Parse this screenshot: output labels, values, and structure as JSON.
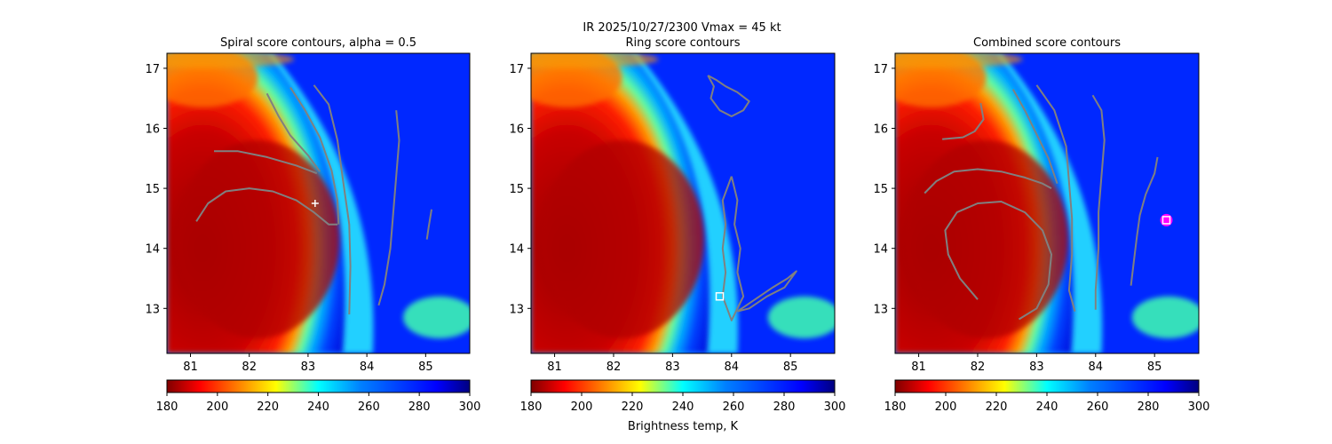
{
  "figure": {
    "suptitle_line1": "IR  2025/10/27/2300    Vmax = 45 kt"
  },
  "chart_data": [
    {
      "type": "heatmap",
      "panel_id": "spiral",
      "title": "Spiral score contours, alpha =  0.5",
      "xlabel": "",
      "ylabel": "",
      "xlim": [
        80.6,
        85.75
      ],
      "ylim": [
        12.25,
        17.25
      ],
      "xticks": [
        "81",
        "82",
        "83",
        "84",
        "85"
      ],
      "yticks": [
        "13",
        "14",
        "15",
        "16",
        "17"
      ],
      "field": "IR brightness temperature (K)",
      "contours": [
        {
          "name": "spiral-contour-1",
          "points": [
            [
              81.1,
              14.45
            ],
            [
              81.3,
              14.75
            ],
            [
              81.6,
              14.95
            ],
            [
              82.0,
              15.0
            ],
            [
              82.4,
              14.95
            ],
            [
              82.8,
              14.8
            ],
            [
              83.1,
              14.6
            ],
            [
              83.35,
              14.4
            ],
            [
              83.5,
              14.4
            ]
          ]
        },
        {
          "name": "spiral-contour-2",
          "points": [
            [
              81.4,
              15.62
            ],
            [
              81.8,
              15.62
            ],
            [
              82.3,
              15.52
            ],
            [
              82.8,
              15.38
            ],
            [
              83.15,
              15.25
            ]
          ]
        },
        {
          "name": "spiral-contour-3",
          "points": [
            [
              82.3,
              16.58
            ],
            [
              82.5,
              16.2
            ],
            [
              82.7,
              15.88
            ],
            [
              83.0,
              15.55
            ],
            [
              83.2,
              15.28
            ]
          ]
        },
        {
          "name": "spiral-contour-4",
          "points": [
            [
              82.7,
              16.68
            ],
            [
              82.95,
              16.3
            ],
            [
              83.2,
              15.85
            ],
            [
              83.4,
              15.3
            ],
            [
              83.5,
              14.8
            ],
            [
              83.52,
              14.4
            ]
          ]
        },
        {
          "name": "spiral-contour-5",
          "points": [
            [
              83.1,
              16.72
            ],
            [
              83.35,
              16.4
            ],
            [
              83.5,
              15.8
            ],
            [
              83.6,
              15.1
            ],
            [
              83.7,
              14.4
            ],
            [
              83.72,
              13.7
            ],
            [
              83.7,
              12.9
            ]
          ]
        },
        {
          "name": "spiral-contour-6",
          "points": [
            [
              84.5,
              16.3
            ],
            [
              84.55,
              15.8
            ],
            [
              84.5,
              15.2
            ],
            [
              84.45,
              14.6
            ],
            [
              84.4,
              14.0
            ],
            [
              84.3,
              13.4
            ],
            [
              84.2,
              13.05
            ]
          ]
        },
        {
          "name": "spiral-contour-7",
          "points": [
            [
              85.1,
              14.65
            ],
            [
              85.05,
              14.35
            ],
            [
              85.02,
              14.15
            ]
          ]
        }
      ],
      "center_marker": {
        "type": "plus",
        "x": 83.12,
        "y": 14.75,
        "color": "#ffffff"
      },
      "colorbar": {
        "vmin": 180,
        "vmax": 300,
        "ticks": [
          "180",
          "200",
          "220",
          "240",
          "260",
          "280",
          "300"
        ],
        "label": ""
      }
    },
    {
      "type": "heatmap",
      "panel_id": "ring",
      "title": "Ring score contours",
      "xlabel": "",
      "ylabel": "",
      "xlim": [
        80.6,
        85.75
      ],
      "ylim": [
        12.25,
        17.25
      ],
      "xticks": [
        "81",
        "82",
        "83",
        "84",
        "85"
      ],
      "yticks": [
        "13",
        "14",
        "15",
        "16",
        "17"
      ],
      "field": "IR brightness temperature (K)",
      "contours": [
        {
          "name": "ring-contour-top",
          "points": [
            [
              83.6,
              16.88
            ],
            [
              83.75,
              16.8
            ],
            [
              83.9,
              16.7
            ],
            [
              84.1,
              16.6
            ],
            [
              84.3,
              16.45
            ],
            [
              84.2,
              16.3
            ],
            [
              84.0,
              16.2
            ],
            [
              83.8,
              16.3
            ],
            [
              83.65,
              16.5
            ],
            [
              83.7,
              16.7
            ],
            [
              83.6,
              16.88
            ]
          ]
        },
        {
          "name": "ring-contour-band",
          "points": [
            [
              84.0,
              15.2
            ],
            [
              84.1,
              14.8
            ],
            [
              84.05,
              14.4
            ],
            [
              84.15,
              14.0
            ],
            [
              84.1,
              13.6
            ],
            [
              84.2,
              13.2
            ],
            [
              84.0,
              12.8
            ],
            [
              83.85,
              13.2
            ],
            [
              83.9,
              13.6
            ],
            [
              83.85,
              14.0
            ],
            [
              83.9,
              14.4
            ],
            [
              83.85,
              14.8
            ],
            [
              84.0,
              15.2
            ]
          ]
        },
        {
          "name": "ring-contour-tail",
          "points": [
            [
              84.1,
              12.95
            ],
            [
              84.4,
              13.15
            ],
            [
              84.7,
              13.35
            ],
            [
              84.95,
              13.5
            ],
            [
              85.1,
              13.62
            ],
            [
              84.9,
              13.35
            ],
            [
              84.6,
              13.2
            ],
            [
              84.3,
              13.0
            ],
            [
              84.1,
              12.95
            ]
          ]
        }
      ],
      "center_marker": {
        "type": "square",
        "x": 83.8,
        "y": 13.2,
        "color": "#ffffff"
      },
      "colorbar": {
        "vmin": 180,
        "vmax": 300,
        "ticks": [
          "180",
          "200",
          "220",
          "240",
          "260",
          "280",
          "300"
        ],
        "label": "Brightness temp, K"
      }
    },
    {
      "type": "heatmap",
      "panel_id": "combined",
      "title": "Combined score contours",
      "xlabel": "",
      "ylabel": "",
      "xlim": [
        80.6,
        85.75
      ],
      "ylim": [
        12.25,
        17.25
      ],
      "xticks": [
        "81",
        "82",
        "83",
        "84",
        "85"
      ],
      "yticks": [
        "13",
        "14",
        "15",
        "16",
        "17"
      ],
      "field": "IR brightness temperature (K)",
      "contours": [
        {
          "name": "combined-contour-1",
          "points": [
            [
              81.4,
              15.82
            ],
            [
              81.75,
              15.85
            ],
            [
              81.95,
              15.95
            ],
            [
              82.1,
              16.15
            ],
            [
              82.05,
              16.42
            ]
          ]
        },
        {
          "name": "combined-contour-2",
          "points": [
            [
              81.1,
              14.92
            ],
            [
              81.3,
              15.12
            ],
            [
              81.6,
              15.28
            ],
            [
              82.0,
              15.32
            ],
            [
              82.4,
              15.28
            ],
            [
              82.8,
              15.18
            ],
            [
              83.1,
              15.08
            ],
            [
              83.25,
              15.0
            ]
          ]
        },
        {
          "name": "combined-contour-3",
          "points": [
            [
              82.0,
              13.15
            ],
            [
              81.7,
              13.5
            ],
            [
              81.5,
              13.9
            ],
            [
              81.45,
              14.3
            ],
            [
              81.65,
              14.6
            ],
            [
              82.0,
              14.75
            ],
            [
              82.4,
              14.78
            ],
            [
              82.8,
              14.6
            ],
            [
              83.1,
              14.3
            ],
            [
              83.25,
              13.9
            ],
            [
              83.2,
              13.4
            ],
            [
              83.0,
              13.0
            ],
            [
              82.7,
              12.82
            ]
          ]
        },
        {
          "name": "combined-contour-4",
          "points": [
            [
              82.6,
              16.65
            ],
            [
              82.8,
              16.3
            ],
            [
              83.0,
              15.9
            ],
            [
              83.2,
              15.5
            ],
            [
              83.35,
              15.08
            ]
          ]
        },
        {
          "name": "combined-contour-5",
          "points": [
            [
              83.0,
              16.72
            ],
            [
              83.3,
              16.3
            ],
            [
              83.5,
              15.7
            ],
            [
              83.55,
              15.1
            ],
            [
              83.6,
              14.5
            ],
            [
              83.6,
              13.9
            ],
            [
              83.55,
              13.3
            ],
            [
              83.65,
              12.95
            ]
          ]
        },
        {
          "name": "combined-contour-6",
          "points": [
            [
              83.95,
              16.55
            ],
            [
              84.1,
              16.3
            ],
            [
              84.15,
              15.8
            ],
            [
              84.1,
              15.2
            ],
            [
              84.05,
              14.6
            ],
            [
              84.05,
              14.0
            ],
            [
              84.0,
              13.3
            ],
            [
              84.0,
              12.98
            ]
          ]
        },
        {
          "name": "combined-contour-7",
          "points": [
            [
              84.6,
              13.38
            ],
            [
              84.65,
              13.8
            ],
            [
              84.7,
              14.2
            ],
            [
              84.75,
              14.55
            ],
            [
              84.85,
              14.9
            ],
            [
              85.0,
              15.25
            ],
            [
              85.05,
              15.52
            ]
          ]
        }
      ],
      "center_marker": {
        "type": "square-circle",
        "x": 85.2,
        "y": 14.47,
        "color": "#ffffff"
      },
      "colorbar": {
        "vmin": 180,
        "vmax": 300,
        "ticks": [
          "180",
          "200",
          "220",
          "240",
          "260",
          "280",
          "300"
        ],
        "label": ""
      }
    }
  ],
  "colors": {
    "contour": "#808080",
    "marker": "#ffffff",
    "marker_ring": "#ff00ff"
  }
}
